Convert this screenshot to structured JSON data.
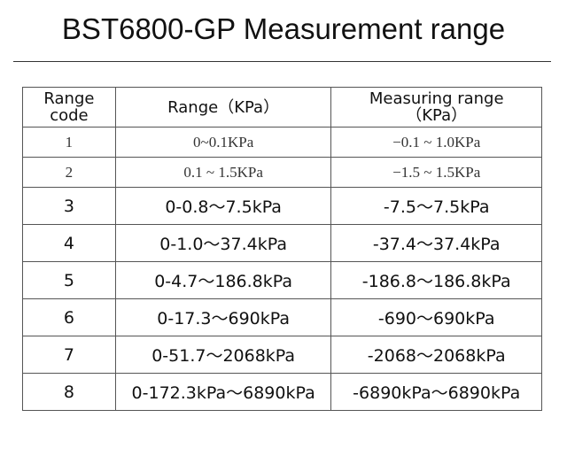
{
  "header": {
    "title": "BST6800-GP Measurement range"
  },
  "table": {
    "columns": [
      "Range code",
      "Range（KPa）",
      "Measuring range（KPa）"
    ],
    "rows": [
      [
        "1",
        "0~0.1KPa",
        "−0.1 ~ 1.0KPa"
      ],
      [
        "2",
        "0.1 ~ 1.5KPa",
        "−1.5 ~ 1.5KPa"
      ],
      [
        "3",
        "0-0.8～7.5kPa",
        "-7.5～7.5kPa"
      ],
      [
        "4",
        "0-1.0～37.4kPa",
        "-37.4～37.4kPa"
      ],
      [
        "5",
        "0-4.7～186.8kPa",
        "-186.8～186.8kPa"
      ],
      [
        "6",
        "0-17.3～690kPa",
        "-690～690kPa"
      ],
      [
        "7",
        "0-51.7～2068kPa",
        "-2068～2068kPa"
      ],
      [
        "8",
        "0-172.3kPa～6890kPa",
        "-6890kPa～6890kPa"
      ]
    ]
  }
}
